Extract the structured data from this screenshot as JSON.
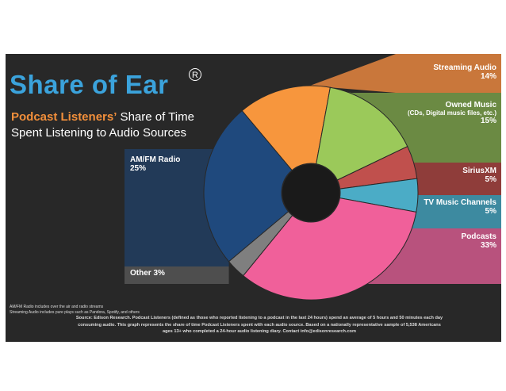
{
  "slide": {
    "title": "Share of Ear",
    "registered_mark": "R",
    "subtitle_highlight": "Podcast Listeners’",
    "subtitle_rest": " Share of Time",
    "subtitle_line2": "Spent Listening to Audio Sources",
    "note_line1": "AM/FM Radio includes over the air and radio streams",
    "note_line2": "Streaming Audio includes pure plays such as Pandora, Spotify, and others",
    "source": "Source: Edison Research. Podcast Listeners (defined as those who reported listening to a podcast in the last 24 hours) spend an average of 5 hours and 50 minutes each day consuming audio. This graph represents the share of time Podcast Listeners spent with each audio source. Based on a nationally representative sample of 5,538 Americans ages 13+ who completed a 24-hour audio listening diary. Contact info@edisonresearch.com"
  },
  "chart_data": {
    "type": "pie",
    "title": "Share of Ear",
    "slices": [
      {
        "name": "Streaming Audio",
        "value": 14,
        "label": "14%",
        "color": "#f7963d",
        "band_color": "#c9773b"
      },
      {
        "name": "Owned Music",
        "detail": "(CDs, Digital music files, etc.)",
        "value": 15,
        "label": "15%",
        "color": "#9bc95a",
        "band_color": "#6b8a43"
      },
      {
        "name": "SiriusXM",
        "value": 5,
        "label": "5%",
        "color": "#c0504d",
        "band_color": "#8f3d3a"
      },
      {
        "name": "TV Music Channels",
        "value": 5,
        "label": "5%",
        "color": "#4bacc6",
        "band_color": "#3d8aa0"
      },
      {
        "name": "Podcasts",
        "value": 33,
        "label": "33%",
        "color": "#f0609a",
        "band_color": "#b8527d"
      },
      {
        "name": "Other",
        "value": 3,
        "label": "3%",
        "color": "#7f7f7f",
        "band_color": "#4e4e4e"
      },
      {
        "name": "AM/FM Radio",
        "value": 25,
        "label": "25%",
        "color": "#1f497d",
        "band_color": "#223a58"
      }
    ],
    "legend": "callout bands"
  }
}
